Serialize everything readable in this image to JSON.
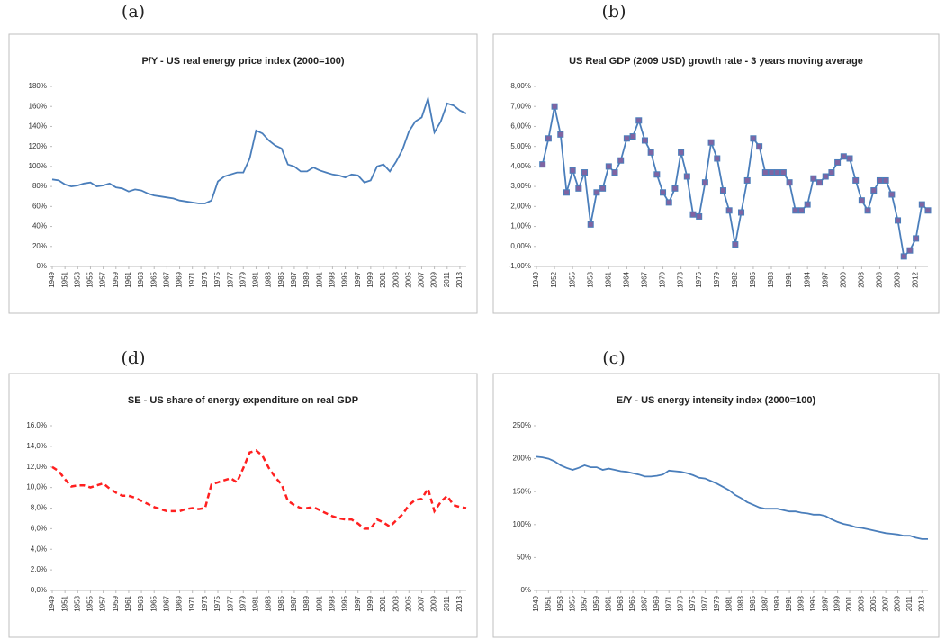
{
  "chart_data": [
    {
      "type": "line",
      "panel": "(a)",
      "title": "P/Y - US real energy price index (2000=100)",
      "x": [
        1949,
        1950,
        1951,
        1952,
        1953,
        1954,
        1955,
        1956,
        1957,
        1958,
        1959,
        1960,
        1961,
        1962,
        1963,
        1964,
        1965,
        1966,
        1967,
        1968,
        1969,
        1970,
        1971,
        1972,
        1973,
        1974,
        1975,
        1976,
        1977,
        1978,
        1979,
        1980,
        1981,
        1982,
        1983,
        1984,
        1985,
        1986,
        1987,
        1988,
        1989,
        1990,
        1991,
        1992,
        1993,
        1994,
        1995,
        1996,
        1997,
        1998,
        1999,
        2000,
        2001,
        2002,
        2003,
        2004,
        2005,
        2006,
        2007,
        2008,
        2009,
        2010,
        2011,
        2012,
        2013,
        2014
      ],
      "values": [
        87,
        86,
        82,
        80,
        81,
        83,
        84,
        80,
        81,
        83,
        79,
        78,
        75,
        77,
        76,
        73,
        71,
        70,
        69,
        68,
        66,
        65,
        64,
        63,
        63,
        66,
        85,
        90,
        92,
        94,
        94,
        108,
        136,
        133,
        126,
        121,
        118,
        102,
        100,
        95,
        95,
        99,
        96,
        94,
        92,
        91,
        89,
        92,
        91,
        84,
        86,
        100,
        102,
        95,
        105,
        117,
        135,
        145,
        149,
        168,
        134,
        145,
        163,
        161,
        156,
        153
      ],
      "color": "#4a7ebb",
      "dashed": false,
      "markers": false,
      "xlim": [
        1949,
        2014
      ],
      "xticks": [
        1949,
        1951,
        1953,
        1955,
        1957,
        1959,
        1961,
        1963,
        1965,
        1967,
        1969,
        1971,
        1973,
        1975,
        1977,
        1979,
        1981,
        1983,
        1985,
        1987,
        1989,
        1991,
        1993,
        1995,
        1997,
        1999,
        2001,
        2003,
        2005,
        2007,
        2009,
        2011,
        2013
      ],
      "ylim": [
        0,
        180
      ],
      "yticks": [
        {
          "value": 0,
          "label": "0%"
        },
        {
          "value": 20,
          "label": "20%"
        },
        {
          "value": 40,
          "label": "40%"
        },
        {
          "value": 60,
          "label": "60%"
        },
        {
          "value": 80,
          "label": "80%"
        },
        {
          "value": 100,
          "label": "100%"
        },
        {
          "value": 120,
          "label": "120%"
        },
        {
          "value": 140,
          "label": "140%"
        },
        {
          "value": 160,
          "label": "160%"
        },
        {
          "value": 180,
          "label": "180%"
        }
      ]
    },
    {
      "type": "line",
      "panel": "(b)",
      "title": "US Real GDP (2009 USD) growth rate - 3 years moving average",
      "x": [
        1950,
        1951,
        1952,
        1953,
        1954,
        1955,
        1956,
        1957,
        1958,
        1959,
        1960,
        1961,
        1962,
        1963,
        1964,
        1965,
        1966,
        1967,
        1968,
        1969,
        1970,
        1971,
        1972,
        1973,
        1974,
        1975,
        1976,
        1977,
        1978,
        1979,
        1980,
        1981,
        1982,
        1983,
        1984,
        1985,
        1986,
        1987,
        1988,
        1989,
        1990,
        1991,
        1992,
        1993,
        1994,
        1995,
        1996,
        1997,
        1998,
        1999,
        2000,
        2001,
        2002,
        2003,
        2004,
        2005,
        2006,
        2007,
        2008,
        2009,
        2010,
        2011,
        2012,
        2013,
        2014
      ],
      "values": [
        4.1,
        5.4,
        7.0,
        5.6,
        2.7,
        3.8,
        2.9,
        3.7,
        1.1,
        2.7,
        2.9,
        4.0,
        3.7,
        4.3,
        5.4,
        5.5,
        6.3,
        5.3,
        4.7,
        3.6,
        2.7,
        2.2,
        2.9,
        4.7,
        3.5,
        1.6,
        1.5,
        3.2,
        5.2,
        4.4,
        2.8,
        1.8,
        0.1,
        1.7,
        3.3,
        5.4,
        5.0,
        3.7,
        3.7,
        3.7,
        3.7,
        3.2,
        1.8,
        1.8,
        2.1,
        3.4,
        3.2,
        3.5,
        3.7,
        4.2,
        4.5,
        4.4,
        3.3,
        2.3,
        1.8,
        2.8,
        3.3,
        3.3,
        2.6,
        1.3,
        -0.5,
        -0.2,
        0.4,
        2.1,
        1.8
      ],
      "color": "#4a7ebb",
      "marker_color": "#8064a2",
      "dashed": false,
      "markers": true,
      "xlim": [
        1949,
        2014
      ],
      "xticks": [
        1949,
        1952,
        1955,
        1958,
        1961,
        1964,
        1967,
        1970,
        1973,
        1976,
        1979,
        1982,
        1985,
        1988,
        1991,
        1994,
        1997,
        2000,
        2003,
        2006,
        2009,
        2012
      ],
      "ylim": [
        -1,
        8
      ],
      "yticks": [
        {
          "value": -1,
          "label": "-1,00%"
        },
        {
          "value": 0,
          "label": "0,00%"
        },
        {
          "value": 1,
          "label": "1,00%"
        },
        {
          "value": 2,
          "label": "2,00%"
        },
        {
          "value": 3,
          "label": "3,00%"
        },
        {
          "value": 4,
          "label": "4,00%"
        },
        {
          "value": 5,
          "label": "5,00%"
        },
        {
          "value": 6,
          "label": "6,00%"
        },
        {
          "value": 7,
          "label": "7,00%"
        },
        {
          "value": 8,
          "label": "8,00%"
        }
      ]
    },
    {
      "type": "line",
      "panel": "(d)",
      "title": "SE - US share of energy expenditure on real GDP",
      "x": [
        1949,
        1950,
        1951,
        1952,
        1953,
        1954,
        1955,
        1956,
        1957,
        1958,
        1959,
        1960,
        1961,
        1962,
        1963,
        1964,
        1965,
        1966,
        1967,
        1968,
        1969,
        1970,
        1971,
        1972,
        1973,
        1974,
        1975,
        1976,
        1977,
        1978,
        1979,
        1980,
        1981,
        1982,
        1983,
        1984,
        1985,
        1986,
        1987,
        1988,
        1989,
        1990,
        1991,
        1992,
        1993,
        1994,
        1995,
        1996,
        1997,
        1998,
        1999,
        2000,
        2001,
        2002,
        2003,
        2004,
        2005,
        2006,
        2007,
        2008,
        2009,
        2010,
        2011,
        2012,
        2013,
        2014
      ],
      "values": [
        12.0,
        11.6,
        10.8,
        10.1,
        10.2,
        10.2,
        10.0,
        10.2,
        10.4,
        9.9,
        9.5,
        9.2,
        9.2,
        9.0,
        8.7,
        8.4,
        8.1,
        7.9,
        7.7,
        7.7,
        7.7,
        7.9,
        8.0,
        7.9,
        8.0,
        10.3,
        10.5,
        10.7,
        10.9,
        10.5,
        11.9,
        13.4,
        13.6,
        13.1,
        11.9,
        11.0,
        10.3,
        8.7,
        8.3,
        8.0,
        8.0,
        8.1,
        7.8,
        7.5,
        7.2,
        7.0,
        6.9,
        6.9,
        6.5,
        6.0,
        6.0,
        6.9,
        6.6,
        6.2,
        6.8,
        7.4,
        8.3,
        8.8,
        8.9,
        9.9,
        7.7,
        8.6,
        9.2,
        8.3,
        8.1,
        8.0
      ],
      "color": "#ff2020",
      "dashed": true,
      "markers": false,
      "xlim": [
        1949,
        2014
      ],
      "xticks": [
        1949,
        1951,
        1953,
        1955,
        1957,
        1959,
        1961,
        1963,
        1965,
        1967,
        1969,
        1971,
        1973,
        1975,
        1977,
        1979,
        1981,
        1983,
        1985,
        1987,
        1989,
        1991,
        1993,
        1995,
        1997,
        1999,
        2001,
        2003,
        2005,
        2007,
        2009,
        2011,
        2013
      ],
      "ylim": [
        0,
        16
      ],
      "yticks": [
        {
          "value": 0,
          "label": "0,0%"
        },
        {
          "value": 2,
          "label": "2,0%"
        },
        {
          "value": 4,
          "label": "4,0%"
        },
        {
          "value": 6,
          "label": "6,0%"
        },
        {
          "value": 8,
          "label": "8,0%"
        },
        {
          "value": 10,
          "label": "10,0%"
        },
        {
          "value": 12,
          "label": "12,0%"
        },
        {
          "value": 14,
          "label": "14,0%"
        },
        {
          "value": 16,
          "label": "16,0%"
        }
      ]
    },
    {
      "type": "line",
      "panel": "(c)",
      "title": "E/Y - US energy intensity index (2000=100)",
      "x": [
        1949,
        1950,
        1951,
        1952,
        1953,
        1954,
        1955,
        1956,
        1957,
        1958,
        1959,
        1960,
        1961,
        1962,
        1963,
        1964,
        1965,
        1966,
        1967,
        1968,
        1969,
        1970,
        1971,
        1972,
        1973,
        1974,
        1975,
        1976,
        1977,
        1978,
        1979,
        1980,
        1981,
        1982,
        1983,
        1984,
        1985,
        1986,
        1987,
        1988,
        1989,
        1990,
        1991,
        1992,
        1993,
        1994,
        1995,
        1996,
        1997,
        1998,
        1999,
        2000,
        2001,
        2002,
        2003,
        2004,
        2005,
        2006,
        2007,
        2008,
        2009,
        2010,
        2011,
        2012,
        2013,
        2014
      ],
      "values": [
        203,
        202,
        200,
        196,
        190,
        186,
        183,
        186,
        190,
        187,
        187,
        183,
        185,
        183,
        181,
        180,
        178,
        176,
        173,
        173,
        174,
        176,
        182,
        181,
        180,
        178,
        175,
        171,
        170,
        166,
        162,
        157,
        152,
        145,
        140,
        134,
        130,
        126,
        124,
        124,
        124,
        122,
        120,
        120,
        118,
        117,
        115,
        115,
        113,
        108,
        104,
        101,
        99,
        96,
        95,
        93,
        91,
        89,
        87,
        86,
        85,
        83,
        83,
        80,
        78,
        78
      ],
      "color": "#4a7ebb",
      "dashed": false,
      "markers": false,
      "xlim": [
        1949,
        2014
      ],
      "xticks": [
        1949,
        1951,
        1953,
        1955,
        1957,
        1959,
        1961,
        1963,
        1965,
        1967,
        1969,
        1971,
        1973,
        1975,
        1977,
        1979,
        1981,
        1983,
        1985,
        1987,
        1989,
        1991,
        1993,
        1995,
        1997,
        1999,
        2001,
        2003,
        2005,
        2007,
        2009,
        2011,
        2013
      ],
      "ylim": [
        0,
        250
      ],
      "yticks": [
        {
          "value": 0,
          "label": "0%"
        },
        {
          "value": 50,
          "label": "50%"
        },
        {
          "value": 100,
          "label": "100%"
        },
        {
          "value": 150,
          "label": "150%"
        },
        {
          "value": 200,
          "label": "200%"
        },
        {
          "value": 250,
          "label": "250%"
        }
      ]
    }
  ]
}
